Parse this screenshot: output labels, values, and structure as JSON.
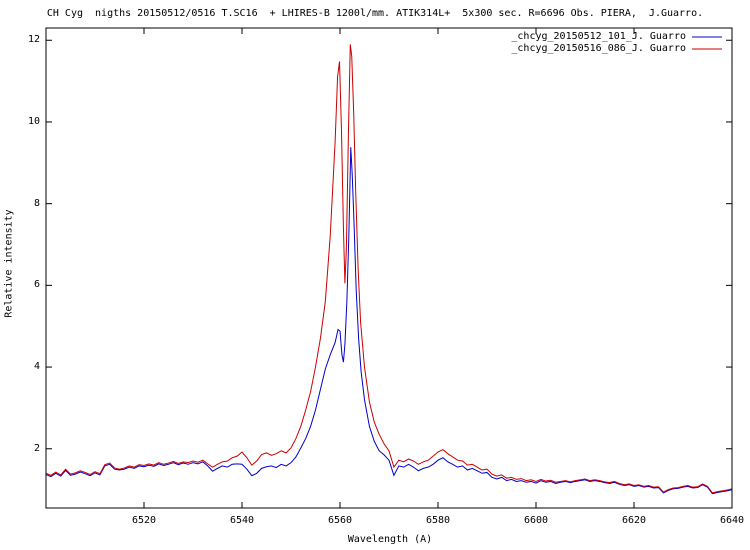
{
  "chart_data": {
    "type": "line",
    "title": "CH Cyg  nigths 20150512/0516 T.SC16  + LHIRES-B 1200l/mm. ATIK314L+  5x300 sec. R=6696 Obs. PIERA,  J.Guarro.",
    "xlabel": "Wavelength (A)",
    "ylabel": "Relative intensity",
    "xlim": [
      6500,
      6640
    ],
    "ylim": [
      0.55,
      12.3
    ],
    "xticks": [
      6520,
      6540,
      6560,
      6580,
      6600,
      6620,
      6640
    ],
    "yticks": [
      2,
      4,
      6,
      8,
      10,
      12
    ],
    "grid": false,
    "legend_position": "top-right",
    "series": [
      {
        "name": "_chcyg_20150512_101_J. Guarro",
        "color": "#0000cc",
        "points": [
          [
            6500,
            1.37
          ],
          [
            6501,
            1.32
          ],
          [
            6502,
            1.4
          ],
          [
            6503,
            1.33
          ],
          [
            6504,
            1.47
          ],
          [
            6505,
            1.35
          ],
          [
            6506,
            1.38
          ],
          [
            6507,
            1.43
          ],
          [
            6508,
            1.39
          ],
          [
            6509,
            1.34
          ],
          [
            6510,
            1.41
          ],
          [
            6511,
            1.36
          ],
          [
            6512,
            1.58
          ],
          [
            6513,
            1.62
          ],
          [
            6514,
            1.5
          ],
          [
            6515,
            1.48
          ],
          [
            6516,
            1.5
          ],
          [
            6517,
            1.55
          ],
          [
            6518,
            1.52
          ],
          [
            6519,
            1.58
          ],
          [
            6520,
            1.56
          ],
          [
            6521,
            1.6
          ],
          [
            6522,
            1.57
          ],
          [
            6523,
            1.63
          ],
          [
            6524,
            1.59
          ],
          [
            6525,
            1.62
          ],
          [
            6526,
            1.66
          ],
          [
            6527,
            1.61
          ],
          [
            6528,
            1.65
          ],
          [
            6529,
            1.62
          ],
          [
            6530,
            1.66
          ],
          [
            6531,
            1.63
          ],
          [
            6532,
            1.68
          ],
          [
            6533,
            1.58
          ],
          [
            6534,
            1.45
          ],
          [
            6535,
            1.52
          ],
          [
            6536,
            1.58
          ],
          [
            6537,
            1.55
          ],
          [
            6538,
            1.62
          ],
          [
            6539,
            1.63
          ],
          [
            6540,
            1.62
          ],
          [
            6541,
            1.5
          ],
          [
            6542,
            1.34
          ],
          [
            6543,
            1.4
          ],
          [
            6544,
            1.52
          ],
          [
            6545,
            1.56
          ],
          [
            6546,
            1.58
          ],
          [
            6547,
            1.54
          ],
          [
            6548,
            1.62
          ],
          [
            6549,
            1.58
          ],
          [
            6550,
            1.66
          ],
          [
            6551,
            1.8
          ],
          [
            6552,
            2.02
          ],
          [
            6553,
            2.25
          ],
          [
            6554,
            2.55
          ],
          [
            6555,
            2.95
          ],
          [
            6556,
            3.45
          ],
          [
            6557,
            3.95
          ],
          [
            6558,
            4.3
          ],
          [
            6559,
            4.6
          ],
          [
            6559.6,
            4.92
          ],
          [
            6560.0,
            4.88
          ],
          [
            6560.4,
            4.3
          ],
          [
            6560.7,
            4.12
          ],
          [
            6561.0,
            4.55
          ],
          [
            6561.4,
            5.6
          ],
          [
            6561.8,
            7.2
          ],
          [
            6562.2,
            9.38
          ],
          [
            6562.5,
            8.7
          ],
          [
            6562.9,
            7.4
          ],
          [
            6563.3,
            5.9
          ],
          [
            6563.8,
            4.7
          ],
          [
            6564.3,
            3.9
          ],
          [
            6565,
            3.2
          ],
          [
            6566,
            2.55
          ],
          [
            6567,
            2.18
          ],
          [
            6568,
            1.95
          ],
          [
            6569,
            1.85
          ],
          [
            6570,
            1.72
          ],
          [
            6571,
            1.35
          ],
          [
            6572,
            1.58
          ],
          [
            6573,
            1.55
          ],
          [
            6574,
            1.62
          ],
          [
            6575,
            1.55
          ],
          [
            6576,
            1.46
          ],
          [
            6577,
            1.52
          ],
          [
            6578,
            1.55
          ],
          [
            6579,
            1.62
          ],
          [
            6580,
            1.72
          ],
          [
            6581,
            1.78
          ],
          [
            6582,
            1.68
          ],
          [
            6583,
            1.62
          ],
          [
            6584,
            1.55
          ],
          [
            6585,
            1.58
          ],
          [
            6586,
            1.48
          ],
          [
            6587,
            1.52
          ],
          [
            6588,
            1.46
          ],
          [
            6589,
            1.4
          ],
          [
            6590,
            1.42
          ],
          [
            6591,
            1.3
          ],
          [
            6592,
            1.26
          ],
          [
            6593,
            1.3
          ],
          [
            6594,
            1.22
          ],
          [
            6595,
            1.25
          ],
          [
            6596,
            1.2
          ],
          [
            6597,
            1.22
          ],
          [
            6598,
            1.18
          ],
          [
            6599,
            1.2
          ],
          [
            6600,
            1.16
          ],
          [
            6601,
            1.22
          ],
          [
            6602,
            1.18
          ],
          [
            6603,
            1.2
          ],
          [
            6604,
            1.15
          ],
          [
            6605,
            1.18
          ],
          [
            6606,
            1.2
          ],
          [
            6607,
            1.17
          ],
          [
            6608,
            1.2
          ],
          [
            6609,
            1.22
          ],
          [
            6610,
            1.24
          ],
          [
            6611,
            1.2
          ],
          [
            6612,
            1.22
          ],
          [
            6613,
            1.2
          ],
          [
            6614,
            1.17
          ],
          [
            6615,
            1.15
          ],
          [
            6616,
            1.18
          ],
          [
            6617,
            1.13
          ],
          [
            6618,
            1.1
          ],
          [
            6619,
            1.12
          ],
          [
            6620,
            1.08
          ],
          [
            6621,
            1.1
          ],
          [
            6622,
            1.06
          ],
          [
            6623,
            1.08
          ],
          [
            6624,
            1.04
          ],
          [
            6625,
            1.05
          ],
          [
            6626,
            0.92
          ],
          [
            6627,
            0.98
          ],
          [
            6628,
            1.02
          ],
          [
            6629,
            1.03
          ],
          [
            6630,
            1.06
          ],
          [
            6631,
            1.08
          ],
          [
            6632,
            1.04
          ],
          [
            6633,
            1.05
          ],
          [
            6634,
            1.12
          ],
          [
            6635,
            1.06
          ],
          [
            6636,
            0.9
          ],
          [
            6637,
            0.93
          ],
          [
            6638,
            0.95
          ],
          [
            6639,
            0.97
          ],
          [
            6640,
            1.0
          ]
        ]
      },
      {
        "name": "_chcyg_20150516_086_J. Guarro",
        "color": "#cc0000",
        "points": [
          [
            6500,
            1.4
          ],
          [
            6501,
            1.35
          ],
          [
            6502,
            1.43
          ],
          [
            6503,
            1.36
          ],
          [
            6504,
            1.5
          ],
          [
            6505,
            1.38
          ],
          [
            6506,
            1.41
          ],
          [
            6507,
            1.46
          ],
          [
            6508,
            1.42
          ],
          [
            6509,
            1.37
          ],
          [
            6510,
            1.44
          ],
          [
            6511,
            1.39
          ],
          [
            6512,
            1.61
          ],
          [
            6513,
            1.65
          ],
          [
            6514,
            1.53
          ],
          [
            6515,
            1.5
          ],
          [
            6516,
            1.53
          ],
          [
            6517,
            1.58
          ],
          [
            6518,
            1.55
          ],
          [
            6519,
            1.61
          ],
          [
            6520,
            1.59
          ],
          [
            6521,
            1.63
          ],
          [
            6522,
            1.6
          ],
          [
            6523,
            1.66
          ],
          [
            6524,
            1.62
          ],
          [
            6525,
            1.65
          ],
          [
            6526,
            1.69
          ],
          [
            6527,
            1.64
          ],
          [
            6528,
            1.68
          ],
          [
            6529,
            1.66
          ],
          [
            6530,
            1.7
          ],
          [
            6531,
            1.67
          ],
          [
            6532,
            1.72
          ],
          [
            6533,
            1.63
          ],
          [
            6534,
            1.55
          ],
          [
            6535,
            1.62
          ],
          [
            6536,
            1.68
          ],
          [
            6537,
            1.7
          ],
          [
            6538,
            1.78
          ],
          [
            6539,
            1.82
          ],
          [
            6540,
            1.92
          ],
          [
            6541,
            1.78
          ],
          [
            6542,
            1.6
          ],
          [
            6543,
            1.7
          ],
          [
            6544,
            1.86
          ],
          [
            6545,
            1.9
          ],
          [
            6546,
            1.84
          ],
          [
            6547,
            1.88
          ],
          [
            6548,
            1.95
          ],
          [
            6549,
            1.9
          ],
          [
            6550,
            2.02
          ],
          [
            6551,
            2.25
          ],
          [
            6552,
            2.55
          ],
          [
            6553,
            2.95
          ],
          [
            6554,
            3.4
          ],
          [
            6555,
            4.0
          ],
          [
            6556,
            4.7
          ],
          [
            6557,
            5.6
          ],
          [
            6558,
            7.2
          ],
          [
            6559,
            9.5
          ],
          [
            6559.5,
            11.1
          ],
          [
            6559.9,
            11.48
          ],
          [
            6560.3,
            9.8
          ],
          [
            6560.7,
            7.4
          ],
          [
            6561.0,
            6.05
          ],
          [
            6561.3,
            6.9
          ],
          [
            6561.7,
            9.6
          ],
          [
            6562.1,
            11.9
          ],
          [
            6562.4,
            11.6
          ],
          [
            6562.8,
            10.2
          ],
          [
            6563.2,
            8.3
          ],
          [
            6563.7,
            6.4
          ],
          [
            6564.2,
            5.1
          ],
          [
            6565,
            4.0
          ],
          [
            6566,
            3.15
          ],
          [
            6567,
            2.65
          ],
          [
            6568,
            2.35
          ],
          [
            6569,
            2.12
          ],
          [
            6570,
            1.95
          ],
          [
            6571,
            1.55
          ],
          [
            6572,
            1.72
          ],
          [
            6573,
            1.68
          ],
          [
            6574,
            1.75
          ],
          [
            6575,
            1.7
          ],
          [
            6576,
            1.62
          ],
          [
            6577,
            1.68
          ],
          [
            6578,
            1.72
          ],
          [
            6579,
            1.82
          ],
          [
            6580,
            1.92
          ],
          [
            6581,
            1.98
          ],
          [
            6582,
            1.88
          ],
          [
            6583,
            1.8
          ],
          [
            6584,
            1.72
          ],
          [
            6585,
            1.7
          ],
          [
            6586,
            1.6
          ],
          [
            6587,
            1.62
          ],
          [
            6588,
            1.55
          ],
          [
            6589,
            1.48
          ],
          [
            6590,
            1.5
          ],
          [
            6591,
            1.38
          ],
          [
            6592,
            1.33
          ],
          [
            6593,
            1.36
          ],
          [
            6594,
            1.28
          ],
          [
            6595,
            1.3
          ],
          [
            6596,
            1.25
          ],
          [
            6597,
            1.27
          ],
          [
            6598,
            1.22
          ],
          [
            6599,
            1.24
          ],
          [
            6600,
            1.2
          ],
          [
            6601,
            1.25
          ],
          [
            6602,
            1.21
          ],
          [
            6603,
            1.23
          ],
          [
            6604,
            1.18
          ],
          [
            6605,
            1.2
          ],
          [
            6606,
            1.22
          ],
          [
            6607,
            1.19
          ],
          [
            6608,
            1.22
          ],
          [
            6609,
            1.24
          ],
          [
            6610,
            1.26
          ],
          [
            6611,
            1.22
          ],
          [
            6612,
            1.24
          ],
          [
            6613,
            1.22
          ],
          [
            6614,
            1.19
          ],
          [
            6615,
            1.17
          ],
          [
            6616,
            1.2
          ],
          [
            6617,
            1.15
          ],
          [
            6618,
            1.12
          ],
          [
            6619,
            1.14
          ],
          [
            6620,
            1.1
          ],
          [
            6621,
            1.12
          ],
          [
            6622,
            1.08
          ],
          [
            6623,
            1.1
          ],
          [
            6624,
            1.06
          ],
          [
            6625,
            1.07
          ],
          [
            6626,
            0.94
          ],
          [
            6627,
            1.0
          ],
          [
            6628,
            1.04
          ],
          [
            6629,
            1.05
          ],
          [
            6630,
            1.08
          ],
          [
            6631,
            1.1
          ],
          [
            6632,
            1.06
          ],
          [
            6633,
            1.07
          ],
          [
            6634,
            1.14
          ],
          [
            6635,
            1.08
          ],
          [
            6636,
            0.92
          ],
          [
            6637,
            0.95
          ],
          [
            6638,
            0.97
          ],
          [
            6639,
            0.99
          ],
          [
            6640,
            1.02
          ]
        ]
      }
    ]
  }
}
